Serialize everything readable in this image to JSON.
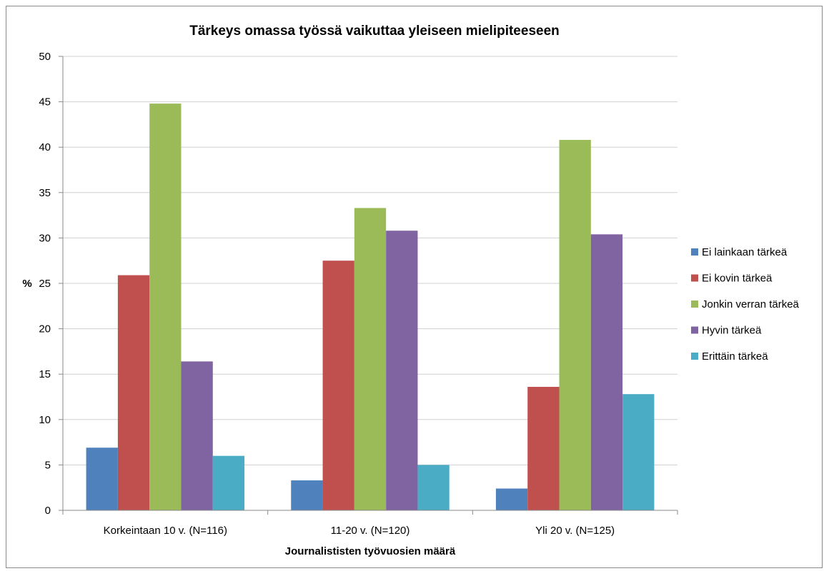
{
  "chart_data": {
    "type": "bar",
    "title": "Tärkeys omassa työssä vaikuttaa yleiseen mielipiteeseen",
    "xlabel": "Journalististen työvuosien määrä",
    "ylabel": "%",
    "ylim": [
      0,
      50
    ],
    "yticks": [
      0,
      5,
      10,
      15,
      20,
      25,
      30,
      35,
      40,
      45,
      50
    ],
    "grid": true,
    "legend_position": "right",
    "categories": [
      "Korkeintaan 10 v. (N=116)",
      "11-20 v. (N=120)",
      "Yli 20 v. (N=125)"
    ],
    "series": [
      {
        "name": "Ei lainkaan tärkeä",
        "color": "#4F81BD",
        "values": [
          6.9,
          3.3,
          2.4
        ]
      },
      {
        "name": "Ei kovin tärkeä",
        "color": "#C0504D",
        "values": [
          25.9,
          27.5,
          13.6
        ]
      },
      {
        "name": "Jonkin verran tärkeä",
        "color": "#9BBB59",
        "values": [
          44.8,
          33.3,
          40.8
        ]
      },
      {
        "name": "Hyvin tärkeä",
        "color": "#8064A2",
        "values": [
          16.4,
          30.8,
          30.4
        ]
      },
      {
        "name": "Erittäin tärkeä",
        "color": "#4BACC6",
        "values": [
          6.0,
          5.0,
          12.8
        ]
      }
    ]
  }
}
